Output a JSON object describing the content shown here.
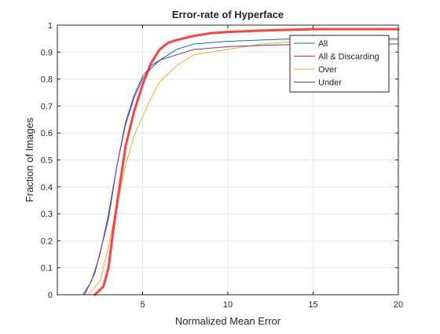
{
  "chart_data": {
    "type": "line",
    "title": "Error-rate of Hyperface",
    "xlabel": "Normalized Mean Error",
    "ylabel": "Fraction of Images",
    "xlim": [
      0,
      20
    ],
    "ylim": [
      0,
      1
    ],
    "grid": true,
    "legend_placement": "top-right",
    "xticks": [
      {
        "value": 5,
        "label": "5"
      },
      {
        "value": 10,
        "label": "10"
      },
      {
        "value": 15,
        "label": "15"
      },
      {
        "value": 20,
        "label": "20"
      }
    ],
    "yticks": [
      {
        "value": 0,
        "label": "0"
      },
      {
        "value": 0.1,
        "label": "0.1"
      },
      {
        "value": 0.2,
        "label": "0.2"
      },
      {
        "value": 0.3,
        "label": "0.3"
      },
      {
        "value": 0.4,
        "label": "0.4"
      },
      {
        "value": 0.5,
        "label": "0.5"
      },
      {
        "value": 0.6,
        "label": "0.6"
      },
      {
        "value": 0.7,
        "label": "0.7"
      },
      {
        "value": 0.8,
        "label": "0.8"
      },
      {
        "value": 0.9,
        "label": "0.9"
      },
      {
        "value": 1,
        "label": "1"
      }
    ],
    "series": [
      {
        "name": "All",
        "color": "#0072BD",
        "points": [
          [
            1.5,
            0
          ],
          [
            2,
            0.05
          ],
          [
            2.5,
            0.15
          ],
          [
            3,
            0.3
          ],
          [
            3.5,
            0.48
          ],
          [
            4,
            0.63
          ],
          [
            4.5,
            0.73
          ],
          [
            5,
            0.8
          ],
          [
            5.5,
            0.84
          ],
          [
            6,
            0.87
          ],
          [
            7,
            0.91
          ],
          [
            8,
            0.93
          ],
          [
            9,
            0.935
          ],
          [
            10,
            0.94
          ],
          [
            12,
            0.945
          ],
          [
            14,
            0.95
          ],
          [
            17,
            0.95
          ],
          [
            20,
            0.95
          ]
        ]
      },
      {
        "name": "All & Discarding",
        "color": "#FF2020",
        "thick": true,
        "points": [
          [
            2.2,
            0
          ],
          [
            2.7,
            0.03
          ],
          [
            3,
            0.1
          ],
          [
            3.3,
            0.25
          ],
          [
            3.6,
            0.38
          ],
          [
            4,
            0.55
          ],
          [
            4.5,
            0.68
          ],
          [
            5,
            0.78
          ],
          [
            5.5,
            0.86
          ],
          [
            6,
            0.91
          ],
          [
            6.5,
            0.935
          ],
          [
            7,
            0.945
          ],
          [
            8,
            0.96
          ],
          [
            9,
            0.97
          ],
          [
            10,
            0.975
          ],
          [
            12,
            0.98
          ],
          [
            15,
            0.985
          ],
          [
            20,
            0.985
          ]
        ]
      },
      {
        "name": "Over",
        "color": "#EDB120",
        "points": [
          [
            1.8,
            0
          ],
          [
            2.5,
            0.05
          ],
          [
            3,
            0.18
          ],
          [
            3.5,
            0.33
          ],
          [
            4,
            0.48
          ],
          [
            4.5,
            0.59
          ],
          [
            5,
            0.66
          ],
          [
            5.5,
            0.73
          ],
          [
            6,
            0.79
          ],
          [
            6.5,
            0.82
          ],
          [
            7,
            0.85
          ],
          [
            8,
            0.89
          ],
          [
            9,
            0.9
          ],
          [
            10,
            0.91
          ],
          [
            12,
            0.93
          ],
          [
            14,
            0.94
          ],
          [
            16,
            0.945
          ],
          [
            20,
            0.945
          ]
        ]
      },
      {
        "name": "Under",
        "color": "#7E2F8E",
        "points": [
          [
            1.6,
            0
          ],
          [
            2.2,
            0.08
          ],
          [
            3,
            0.28
          ],
          [
            3.5,
            0.48
          ],
          [
            4,
            0.64
          ],
          [
            4.5,
            0.74
          ],
          [
            5,
            0.81
          ],
          [
            5.5,
            0.85
          ],
          [
            6,
            0.87
          ],
          [
            7,
            0.89
          ],
          [
            8,
            0.91
          ],
          [
            9,
            0.915
          ],
          [
            10,
            0.92
          ],
          [
            12,
            0.925
          ],
          [
            15,
            0.93
          ],
          [
            20,
            0.93
          ]
        ]
      }
    ]
  }
}
